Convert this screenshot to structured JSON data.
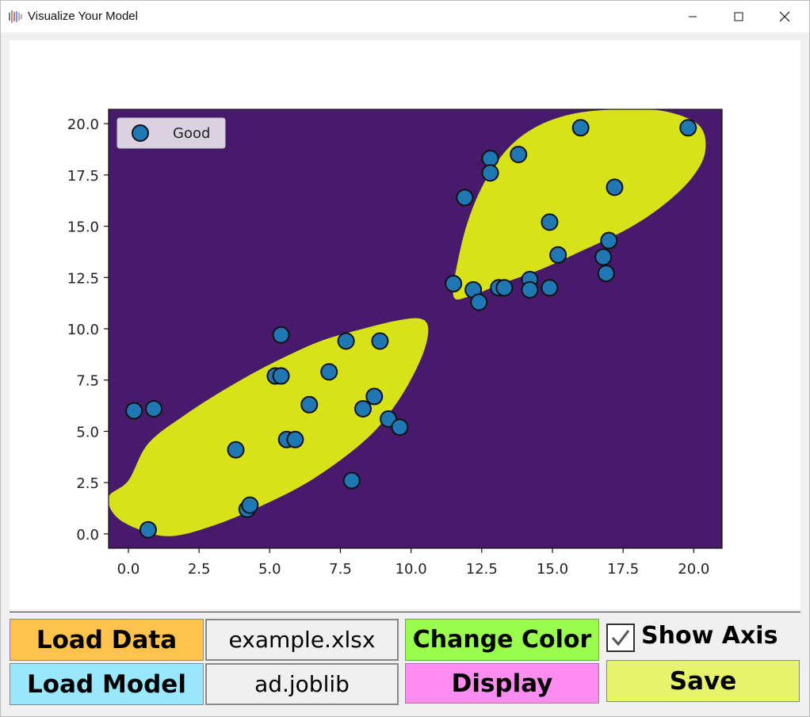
{
  "window": {
    "title": "Visualize Your Model",
    "icon": "app-waveform-icon",
    "controls": [
      "minimize-icon",
      "maximize-icon",
      "close-icon"
    ]
  },
  "chart_data": {
    "type": "scatter",
    "title": "",
    "xlabel": "",
    "ylabel": "",
    "xlim": [
      -0.7,
      21.0
    ],
    "ylim": [
      -0.7,
      20.7
    ],
    "xticks": [
      "0.0",
      "2.5",
      "5.0",
      "7.5",
      "10.0",
      "12.5",
      "15.0",
      "17.5",
      "20.0"
    ],
    "yticks": [
      "0.0",
      "2.5",
      "5.0",
      "7.5",
      "10.0",
      "12.5",
      "15.0",
      "17.5",
      "20.0"
    ],
    "xtick_values": [
      0,
      2.5,
      5,
      7.5,
      10,
      12.5,
      15,
      17.5,
      20
    ],
    "ytick_values": [
      0,
      2.5,
      5,
      7.5,
      10,
      12.5,
      15,
      17.5,
      20
    ],
    "grid": false,
    "legend": {
      "placement": "top-left",
      "entries": [
        "Good"
      ]
    },
    "colors": {
      "background_region": "#481a6c",
      "decision_region": "#d8e219",
      "point_fill": "#1f77b4",
      "point_edge": "#111111"
    },
    "regions": [
      {
        "class": "Good",
        "polygon": [
          [
            0,
            2.6
          ],
          [
            0.7,
            4.4
          ],
          [
            2.0,
            5.8
          ],
          [
            3.6,
            7.2
          ],
          [
            5.2,
            8.4
          ],
          [
            6.8,
            9.4
          ],
          [
            8.3,
            10.0
          ],
          [
            9.5,
            10.4
          ],
          [
            10.3,
            10.5
          ],
          [
            10.6,
            10.1
          ],
          [
            10.5,
            9.1
          ],
          [
            10.1,
            7.8
          ],
          [
            9.5,
            6.4
          ],
          [
            8.7,
            5.0
          ],
          [
            7.6,
            3.7
          ],
          [
            6.2,
            2.4
          ],
          [
            4.6,
            1.3
          ],
          [
            3.0,
            0.4
          ],
          [
            1.6,
            -0.1
          ],
          [
            0.6,
            0.1
          ],
          [
            -0.4,
            0.8
          ],
          [
            -0.7,
            1.8
          ]
        ]
      },
      {
        "class": "Good",
        "polygon": [
          [
            11.5,
            11.6
          ],
          [
            11.7,
            13.6
          ],
          [
            12.1,
            15.6
          ],
          [
            12.7,
            17.4
          ],
          [
            13.5,
            18.9
          ],
          [
            14.5,
            19.9
          ],
          [
            15.8,
            20.5
          ],
          [
            17.4,
            20.7
          ],
          [
            19.0,
            20.6
          ],
          [
            20.2,
            19.9
          ],
          [
            20.4,
            18.6
          ],
          [
            19.9,
            17.3
          ],
          [
            18.9,
            16.0
          ],
          [
            17.7,
            14.9
          ],
          [
            16.2,
            13.9
          ],
          [
            14.6,
            12.9
          ],
          [
            13.2,
            12.2
          ],
          [
            12.1,
            11.6
          ]
        ]
      }
    ],
    "series": [
      {
        "name": "Good",
        "points": [
          [
            0.2,
            6.0
          ],
          [
            0.9,
            6.1
          ],
          [
            0.7,
            0.2
          ],
          [
            3.8,
            4.1
          ],
          [
            4.2,
            1.2
          ],
          [
            4.3,
            1.4
          ],
          [
            5.2,
            7.7
          ],
          [
            5.4,
            7.7
          ],
          [
            5.4,
            9.7
          ],
          [
            5.6,
            4.6
          ],
          [
            5.9,
            4.6
          ],
          [
            6.4,
            6.3
          ],
          [
            7.1,
            7.9
          ],
          [
            7.7,
            9.4
          ],
          [
            7.9,
            2.6
          ],
          [
            8.3,
            6.1
          ],
          [
            8.7,
            6.7
          ],
          [
            8.9,
            9.4
          ],
          [
            9.2,
            5.6
          ],
          [
            9.6,
            5.2
          ],
          [
            11.5,
            12.2
          ],
          [
            11.9,
            16.4
          ],
          [
            12.2,
            11.9
          ],
          [
            12.4,
            11.3
          ],
          [
            12.8,
            18.3
          ],
          [
            12.8,
            17.6
          ],
          [
            13.1,
            12.0
          ],
          [
            13.3,
            12.0
          ],
          [
            13.8,
            18.5
          ],
          [
            14.2,
            12.4
          ],
          [
            14.2,
            11.9
          ],
          [
            14.9,
            12.0
          ],
          [
            14.9,
            15.2
          ],
          [
            15.2,
            13.6
          ],
          [
            16.0,
            19.8
          ],
          [
            16.8,
            13.5
          ],
          [
            16.9,
            12.7
          ],
          [
            17.0,
            14.3
          ],
          [
            17.2,
            16.9
          ],
          [
            19.8,
            19.8
          ]
        ]
      }
    ]
  },
  "controls": {
    "load_data_label": "Load Data",
    "load_model_label": "Load Model",
    "data_file": "example.xlsx",
    "model_file": "ad.joblib",
    "change_color_label": "Change Color",
    "display_label": "Display",
    "show_axis_label": "Show Axis",
    "show_axis_checked": true,
    "save_label": "Save",
    "colors": {
      "load_data": "#ffc34c",
      "load_model": "#99e8ff",
      "change_color": "#99ff4c",
      "display": "#ff8cf0",
      "save": "#e5f46b"
    }
  }
}
